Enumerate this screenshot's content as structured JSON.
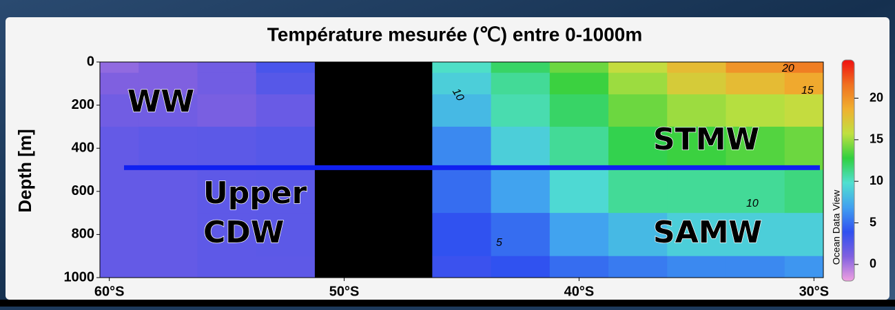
{
  "chart_data": {
    "type": "heatmap",
    "title": "Température mesurée (℃) entre 0-1000m",
    "y_label": "Depth [m]",
    "colorbar_label": "Ocean Data View",
    "x": [
      60,
      57.5,
      55,
      52.5,
      50,
      47.5,
      45,
      42.5,
      40,
      37.5,
      35,
      32.5,
      30
    ],
    "y": [
      0,
      100,
      200,
      400,
      600,
      800,
      1000
    ],
    "z": [
      [
        0.5,
        1,
        1.5,
        2,
        2,
        2,
        2
      ],
      [
        1,
        1,
        1.5,
        2.2,
        2,
        2,
        2
      ],
      [
        1.5,
        1.5,
        1.2,
        2.3,
        2.2,
        2.2,
        2.2
      ],
      [
        3,
        2.5,
        1.8,
        2.5,
        2.3,
        2.3,
        2.2
      ],
      [
        null,
        null,
        null,
        null,
        null,
        null,
        null
      ],
      [
        null,
        null,
        null,
        null,
        null,
        null,
        null
      ],
      [
        10,
        9,
        8,
        6,
        5,
        4,
        3.5
      ],
      [
        12,
        11,
        10.5,
        9,
        7,
        5,
        4
      ],
      [
        14,
        13,
        12,
        11,
        9.5,
        7,
        5
      ],
      [
        16,
        15,
        14,
        12.5,
        11,
        8,
        5.5
      ],
      [
        18,
        17,
        15,
        13,
        11,
        9,
        6
      ],
      [
        20,
        18,
        15.5,
        13.5,
        11,
        9,
        6
      ],
      [
        21,
        19,
        16,
        14,
        11.5,
        9,
        6.5
      ]
    ],
    "xlim": [
      60.4,
      29.6
    ],
    "xticks": [
      {
        "value": 60,
        "label": "60°S"
      },
      {
        "value": 50,
        "label": "50°S"
      },
      {
        "value": 40,
        "label": "40°S"
      },
      {
        "value": 30,
        "label": "30°S"
      }
    ],
    "ylim": [
      0,
      1000
    ],
    "yticks": [
      0,
      200,
      400,
      600,
      800,
      1000
    ],
    "clim": [
      -2,
      24.6
    ],
    "cticks": [
      0,
      5,
      10,
      15,
      20
    ],
    "colormap": [
      "#f0a0e0",
      "#8060e0",
      "#3050f0",
      "#40a0f0",
      "#50e0d0",
      "#30d040",
      "#c0e040",
      "#f0b030",
      "#f07020",
      "#f01010"
    ],
    "section_line_depth": 490,
    "section_line_color": "#1020f0",
    "contour_labels": [
      "20",
      "15",
      "10",
      "10",
      "5"
    ],
    "annotations": [
      "WW",
      "Upper",
      "CDW",
      "STMW",
      "SAMW"
    ]
  }
}
